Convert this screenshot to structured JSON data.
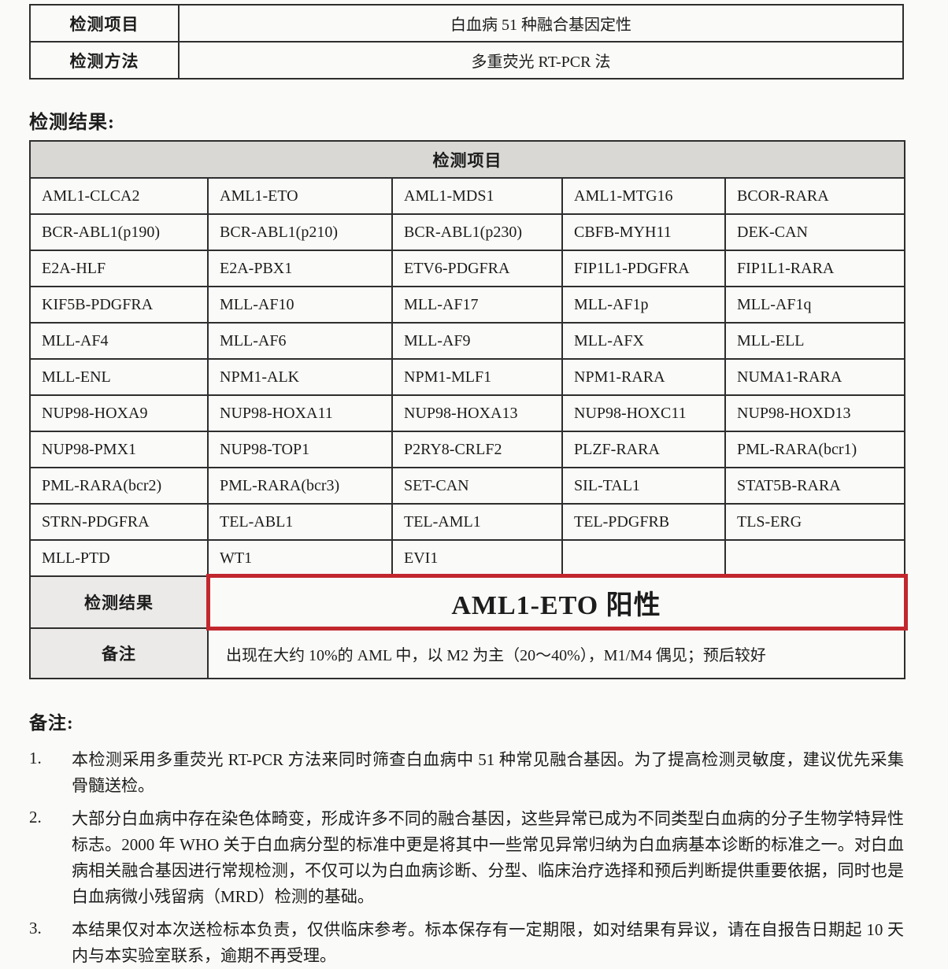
{
  "top_table": {
    "rows": [
      {
        "label": "检测项目",
        "value": "白血病 51 种融合基因定性"
      },
      {
        "label": "检测方法",
        "value": "多重荧光 RT-PCR 法"
      }
    ]
  },
  "results_section": {
    "heading": "检测结果:",
    "table_header": "检测项目",
    "genes": [
      [
        "AML1-CLCA2",
        "AML1-ETO",
        "AML1-MDS1",
        "AML1-MTG16",
        "BCOR-RARA"
      ],
      [
        "BCR-ABL1(p190)",
        "BCR-ABL1(p210)",
        "BCR-ABL1(p230)",
        "CBFB-MYH11",
        "DEK-CAN"
      ],
      [
        "E2A-HLF",
        "E2A-PBX1",
        "ETV6-PDGFRA",
        "FIP1L1-PDGFRA",
        "FIP1L1-RARA"
      ],
      [
        "KIF5B-PDGFRA",
        "MLL-AF10",
        "MLL-AF17",
        "MLL-AF1p",
        "MLL-AF1q"
      ],
      [
        "MLL-AF4",
        "MLL-AF6",
        "MLL-AF9",
        "MLL-AFX",
        "MLL-ELL"
      ],
      [
        "MLL-ENL",
        "NPM1-ALK",
        "NPM1-MLF1",
        "NPM1-RARA",
        "NUMA1-RARA"
      ],
      [
        "NUP98-HOXA9",
        "NUP98-HOXA11",
        "NUP98-HOXA13",
        "NUP98-HOXC11",
        "NUP98-HOXD13"
      ],
      [
        "NUP98-PMX1",
        "NUP98-TOP1",
        "P2RY8-CRLF2",
        "PLZF-RARA",
        "PML-RARA(bcr1)"
      ],
      [
        "PML-RARA(bcr2)",
        "PML-RARA(bcr3)",
        "SET-CAN",
        "SIL-TAL1",
        "STAT5B-RARA"
      ],
      [
        "STRN-PDGFRA",
        "TEL-ABL1",
        "TEL-AML1",
        "TEL-PDGFRB",
        "TLS-ERG"
      ],
      [
        "MLL-PTD",
        "WT1",
        "EVI1",
        "",
        ""
      ]
    ],
    "result_label": "检测结果",
    "result_value": "AML1-ETO 阳性",
    "remark_label": "备注",
    "remark_value": "出现在大约 10%的 AML 中，以 M2 为主（20～40%），M1/M4 偶见；预后较好"
  },
  "notes_section": {
    "heading": "备注:",
    "items": [
      {
        "num": "1.",
        "text": "本检测采用多重荧光 RT-PCR 方法来同时筛查白血病中 51 种常见融合基因。为了提高检测灵敏度，建议优先采集骨髓送检。"
      },
      {
        "num": "2.",
        "text": "大部分白血病中存在染色体畸变，形成许多不同的融合基因，这些异常已成为不同类型白血病的分子生物学特异性标志。2000 年 WHO 关于白血病分型的标准中更是将其中一些常见异常归纳为白血病基本诊断的标准之一。对白血病相关融合基因进行常规检测，不仅可以为白血病诊断、分型、临床治疗选择和预后判断提供重要依据，同时也是白血病微小残留病（MRD）检测的基础。"
      },
      {
        "num": "3.",
        "text": "本结果仅对本次送检标本负责，仅供临床参考。标本保存有一定期限，如对结果有异议，请在自报告日期起 10 天内与本实验室联系，逾期不再受理。"
      }
    ]
  },
  "colors": {
    "accent_red": "#c1272d",
    "header_gray": "#d9d8d5",
    "label_gray": "#eceae8",
    "border": "#2e2e2e"
  }
}
